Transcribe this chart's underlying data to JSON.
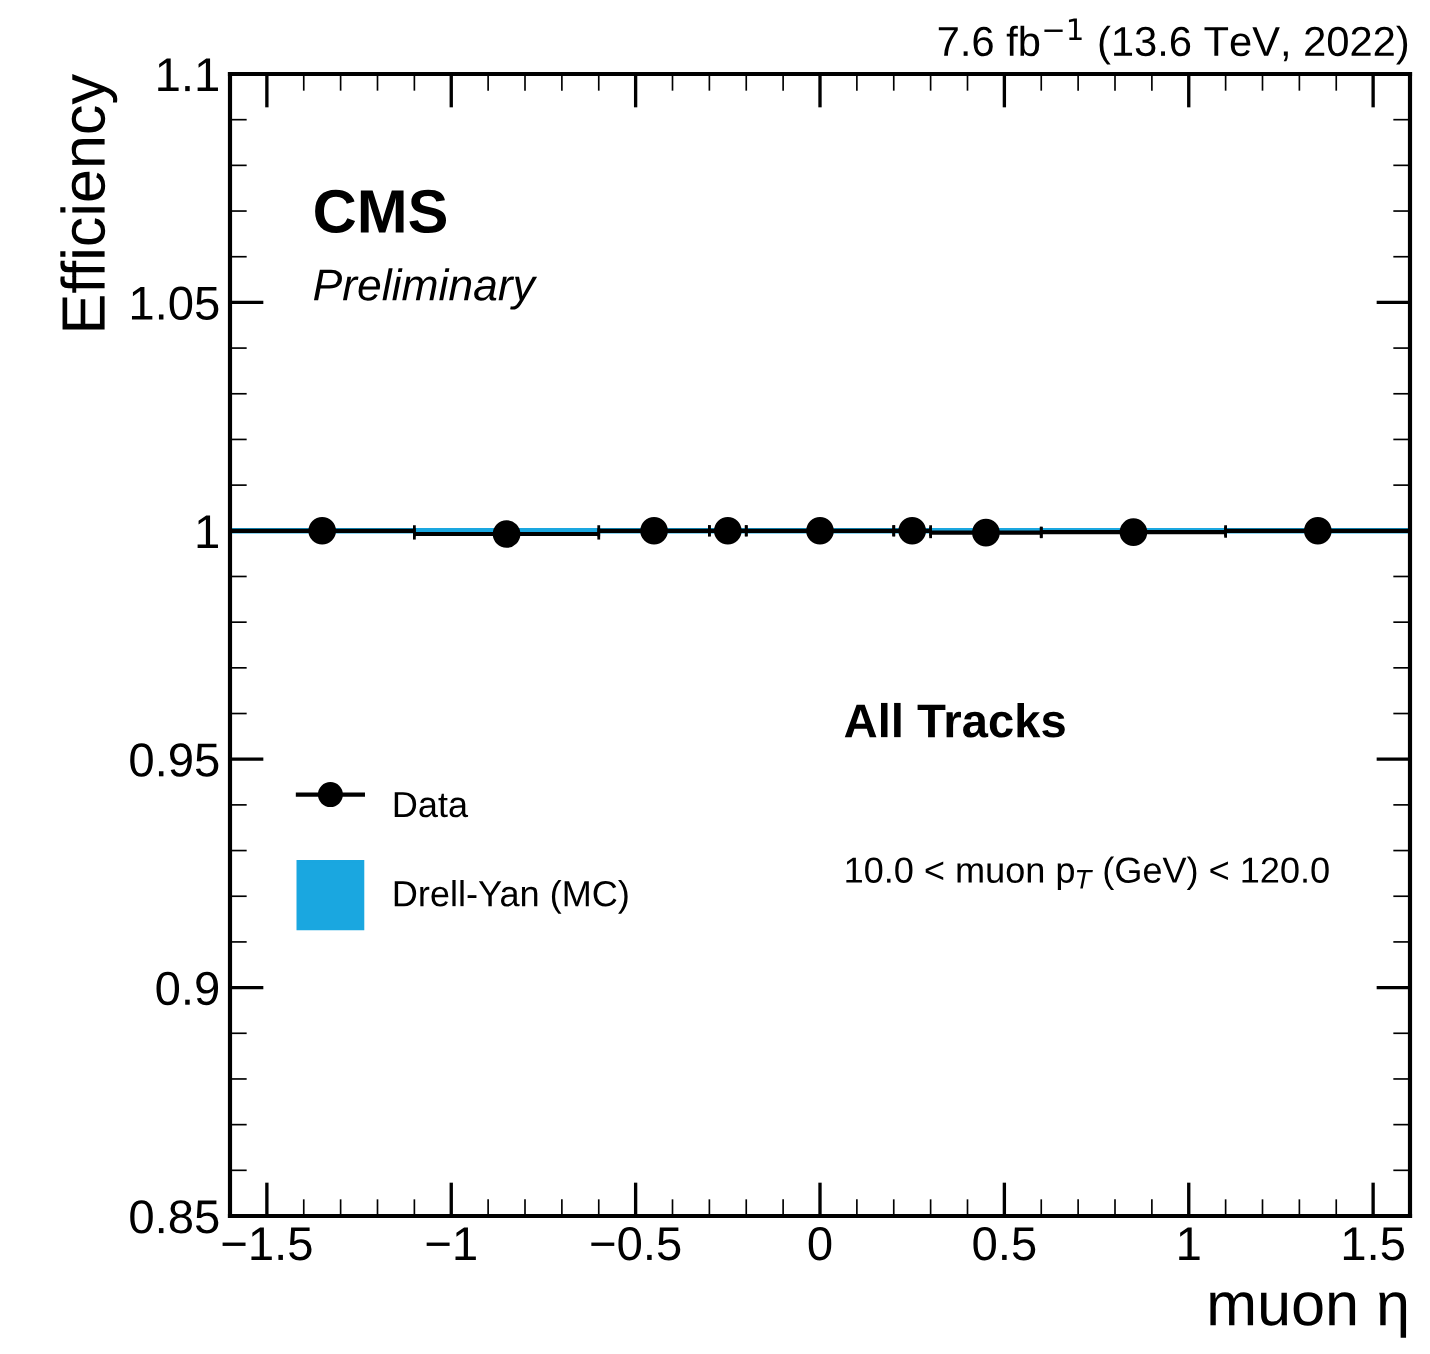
{
  "chart_data": {
    "type": "scatter",
    "xlabel": "muon η",
    "ylabel": "Efficiency",
    "xlim": [
      -1.6,
      1.6
    ],
    "ylim": [
      0.85,
      1.1
    ],
    "xticks": [
      {
        "value": -1.5,
        "label": "−1.5"
      },
      {
        "value": -1,
        "label": "−1"
      },
      {
        "value": -0.5,
        "label": "−0.5"
      },
      0,
      0.5,
      1,
      1.5
    ],
    "yticks": [
      0.85,
      0.9,
      0.95,
      1,
      1.05,
      1.1
    ],
    "grid": false,
    "legend": "left",
    "series": [
      {
        "name": "Drell-Yan (MC)",
        "type": "step",
        "color": "#1aa7e0",
        "x": [
          -1.6,
          -1.1,
          -0.6,
          -0.3,
          -0.2,
          0.2,
          0.3,
          0.6,
          1.1,
          1.6
        ],
        "values": [
          1.0,
          1.0,
          1.0,
          1.0,
          1.0,
          1.0,
          1.0,
          1.0,
          1.0,
          1.0
        ]
      },
      {
        "name": "Data",
        "color": "#000000",
        "marker": "circle",
        "x": [
          -1.35,
          -0.85,
          -0.45,
          -0.25,
          0,
          0.25,
          0.45,
          0.85,
          1.35
        ],
        "values": [
          1.0,
          0.9993,
          1.0,
          1.0,
          1.0,
          1.0,
          0.9996,
          0.9997,
          1.0
        ],
        "xerrors": [
          0.25,
          0.25,
          0.15,
          0.05,
          0.2,
          0.05,
          0.15,
          0.25,
          0.25
        ]
      }
    ],
    "annotations": [
      "7.6 fb$^{−1}$ (13.6 TeV, 2022)",
      "CMS",
      "Preliminary",
      "All Tracks",
      "10.0 < muon p$_{T}$ (GeV) < 120.0"
    ]
  }
}
